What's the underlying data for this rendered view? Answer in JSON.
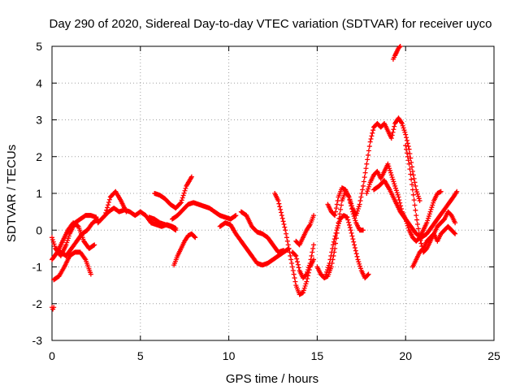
{
  "chart_data": {
    "type": "scatter",
    "title": "Day 290 of 2020, Sidereal Day-to-day VTEC variation (SDTVAR) for receiver uyco",
    "xlabel": "GPS time / hours",
    "ylabel": "SDTVAR / TECUs",
    "xlim": [
      0,
      25
    ],
    "ylim": [
      -3,
      5
    ],
    "xticks": [
      0,
      5,
      10,
      15,
      20,
      25
    ],
    "yticks": [
      -3,
      -2,
      -1,
      0,
      1,
      2,
      3,
      4,
      5
    ],
    "xtick_labels": [
      "0",
      "5",
      "10",
      "15",
      "20",
      "25"
    ],
    "ytick_labels": [
      "-3",
      "-2",
      "-1",
      "0",
      "1",
      "2",
      "3",
      "4",
      "5"
    ],
    "grid": true,
    "marker": "+",
    "series_color": "#ff0000",
    "series": [
      {
        "name": "trace-1",
        "x": [
          0.0,
          0.05,
          0.1
        ],
        "y": [
          -2.1,
          -2.15,
          -2.1
        ]
      },
      {
        "name": "trace-2",
        "x": [
          0.0,
          0.2,
          0.5,
          0.8,
          1.0,
          1.3,
          1.6,
          1.9,
          2.2,
          2.5
        ],
        "y": [
          -0.2,
          -0.5,
          -0.7,
          -0.4,
          -0.1,
          0.2,
          0.3,
          0.4,
          0.4,
          0.35
        ]
      },
      {
        "name": "trace-3",
        "x": [
          0.0,
          0.3,
          0.6,
          0.9,
          1.2,
          1.5,
          1.8,
          2.1,
          2.4
        ],
        "y": [
          -0.8,
          -0.6,
          -0.3,
          0.0,
          0.2,
          0.1,
          -0.3,
          -0.5,
          -0.4
        ]
      },
      {
        "name": "trace-4",
        "x": [
          0.1,
          0.4,
          0.7,
          1.0,
          1.3,
          1.6,
          1.9,
          2.2
        ],
        "y": [
          -1.35,
          -1.25,
          -1.0,
          -0.7,
          -0.6,
          -0.6,
          -0.8,
          -1.2
        ]
      },
      {
        "name": "trace-5",
        "x": [
          0.2,
          0.5,
          0.8,
          1.1,
          1.4,
          1.7,
          2.0,
          2.3,
          2.6
        ],
        "y": [
          -0.5,
          -0.6,
          -0.7,
          -0.5,
          -0.3,
          -0.1,
          0.0,
          0.2,
          0.3
        ]
      },
      {
        "name": "trace-6",
        "x": [
          2.6,
          2.9,
          3.2,
          3.5,
          3.8,
          4.1,
          4.4,
          4.7,
          5.0,
          5.3,
          5.6,
          5.9,
          6.2,
          6.5,
          6.8,
          7.0
        ],
        "y": [
          0.2,
          0.35,
          0.5,
          0.6,
          0.5,
          0.55,
          0.5,
          0.4,
          0.5,
          0.4,
          0.2,
          0.15,
          0.1,
          0.15,
          0.1,
          0.05
        ]
      },
      {
        "name": "trace-7",
        "x": [
          3.0,
          3.3,
          3.6,
          3.9,
          4.2
        ],
        "y": [
          0.4,
          0.9,
          1.05,
          0.8,
          0.5
        ]
      },
      {
        "name": "trace-8",
        "x": [
          5.5,
          5.8,
          6.1,
          6.4,
          6.7,
          7.0
        ],
        "y": [
          0.35,
          0.3,
          0.2,
          0.15,
          0.1,
          0.0
        ]
      },
      {
        "name": "trace-9",
        "x": [
          5.8,
          6.1,
          6.4,
          6.7,
          7.0,
          7.3,
          7.6,
          7.9
        ],
        "y": [
          1.0,
          0.95,
          0.85,
          0.7,
          0.6,
          0.75,
          1.2,
          1.45
        ]
      },
      {
        "name": "trace-10",
        "x": [
          6.9,
          7.1,
          7.3,
          7.5,
          7.7,
          7.9,
          8.1
        ],
        "y": [
          -0.95,
          -0.7,
          -0.5,
          -0.3,
          -0.15,
          -0.1,
          -0.2
        ]
      },
      {
        "name": "trace-11",
        "x": [
          6.8,
          7.1,
          7.4,
          7.7,
          8.0,
          8.3,
          8.6,
          8.9,
          9.2,
          9.5,
          9.8,
          10.1,
          10.4
        ],
        "y": [
          0.3,
          0.4,
          0.55,
          0.7,
          0.75,
          0.7,
          0.65,
          0.6,
          0.5,
          0.4,
          0.35,
          0.3,
          0.4
        ]
      },
      {
        "name": "trace-12",
        "x": [
          9.5,
          9.8,
          10.1,
          10.4,
          10.7,
          11.0,
          11.3,
          11.6,
          11.9,
          12.2,
          12.5,
          12.8,
          13.1,
          13.4
        ],
        "y": [
          0.1,
          0.2,
          0.15,
          -0.1,
          -0.3,
          -0.5,
          -0.7,
          -0.9,
          -0.95,
          -0.9,
          -0.8,
          -0.7,
          -0.6,
          -0.5
        ]
      },
      {
        "name": "trace-13",
        "x": [
          10.7,
          11.0,
          11.3,
          11.6,
          11.9,
          12.2,
          12.5,
          12.8,
          13.1
        ],
        "y": [
          0.5,
          0.4,
          0.1,
          -0.05,
          -0.1,
          -0.2,
          -0.4,
          -0.6,
          -0.55
        ]
      },
      {
        "name": "trace-14",
        "x": [
          12.6,
          12.8,
          13.0,
          13.2,
          13.4,
          13.6,
          13.8,
          14.0,
          14.2,
          14.4,
          14.6,
          14.8
        ],
        "y": [
          1.0,
          0.8,
          0.4,
          0.0,
          -0.5,
          -1.0,
          -1.5,
          -1.75,
          -1.7,
          -1.4,
          -1.0,
          -0.8
        ]
      },
      {
        "name": "trace-15",
        "x": [
          13.6,
          13.8,
          14.0,
          14.2,
          14.4,
          14.6,
          14.8
        ],
        "y": [
          -0.6,
          -0.7,
          -1.1,
          -1.3,
          -1.2,
          -0.9,
          -0.4
        ]
      },
      {
        "name": "trace-16",
        "x": [
          13.8,
          14.0,
          14.2,
          14.4,
          14.6,
          14.8
        ],
        "y": [
          -0.3,
          -0.4,
          -0.2,
          0.0,
          0.15,
          0.4
        ]
      },
      {
        "name": "trace-17",
        "x": [
          15.0,
          15.2,
          15.4,
          15.6,
          15.8,
          16.0,
          16.2,
          16.4,
          16.6,
          16.8,
          17.0,
          17.2,
          17.4,
          17.6
        ],
        "y": [
          -1.0,
          -1.2,
          -1.3,
          -1.25,
          -1.0,
          -0.5,
          0.2,
          0.8,
          1.05,
          0.9,
          0.5,
          0.2,
          0.0,
          0.0
        ]
      },
      {
        "name": "trace-18",
        "x": [
          15.5,
          15.7,
          15.9,
          16.1,
          16.3,
          16.5,
          16.7,
          16.9,
          17.1,
          17.3,
          17.5,
          17.7,
          17.9
        ],
        "y": [
          -1.2,
          -0.9,
          -0.4,
          0.0,
          0.3,
          0.4,
          0.35,
          0.0,
          -0.4,
          -0.8,
          -1.1,
          -1.3,
          -1.2
        ]
      },
      {
        "name": "trace-19",
        "x": [
          15.6,
          15.8,
          16.0,
          16.2,
          16.4,
          16.6,
          16.8,
          17.0,
          17.2,
          17.4,
          17.6,
          17.8,
          18.0,
          18.2,
          18.4,
          18.6,
          18.8,
          19.0,
          19.2,
          19.4,
          19.6,
          19.8,
          20.0,
          20.2,
          20.4,
          20.6,
          20.8
        ],
        "y": [
          0.7,
          0.5,
          0.4,
          0.9,
          1.15,
          1.1,
          0.9,
          0.6,
          0.4,
          0.7,
          1.2,
          1.8,
          2.4,
          2.8,
          2.9,
          2.8,
          2.9,
          2.7,
          2.5,
          2.9,
          3.05,
          2.9,
          2.6,
          2.2,
          1.6,
          1.1,
          0.8
        ]
      },
      {
        "name": "trace-20",
        "x": [
          17.8,
          18.0,
          18.2,
          18.4,
          18.6,
          18.8,
          19.0,
          19.2,
          19.4,
          19.6,
          19.8,
          20.0,
          20.2,
          20.4,
          20.6,
          20.8,
          21.0,
          21.2,
          21.4,
          21.6,
          21.8,
          22.0
        ],
        "y": [
          1.0,
          1.3,
          1.5,
          1.6,
          1.4,
          1.6,
          1.8,
          1.5,
          1.2,
          0.9,
          0.5,
          0.3,
          0.0,
          -0.2,
          -0.3,
          -0.2,
          0.0,
          0.2,
          0.5,
          0.8,
          1.0,
          1.05
        ]
      },
      {
        "name": "trace-21",
        "x": [
          18.2,
          18.5,
          18.8,
          19.1,
          19.4,
          19.7,
          20.0,
          20.3,
          20.6,
          20.9,
          21.2,
          21.5,
          21.8,
          22.1,
          22.4,
          22.7,
          22.9
        ],
        "y": [
          1.1,
          1.2,
          1.35,
          1.1,
          0.8,
          0.5,
          0.3,
          0.1,
          -0.1,
          -0.2,
          -0.1,
          0.1,
          0.3,
          0.5,
          0.7,
          0.9,
          1.05
        ]
      },
      {
        "name": "trace-22",
        "x": [
          20.0,
          20.2,
          20.4,
          20.6,
          20.8,
          21.0,
          21.2,
          21.4,
          21.6,
          21.8,
          22.0,
          22.2,
          22.4,
          22.6,
          22.8
        ],
        "y": [
          2.3,
          1.8,
          1.1,
          0.4,
          -0.2,
          -0.6,
          -0.5,
          -0.3,
          -0.1,
          0.1,
          0.2,
          0.3,
          0.5,
          0.4,
          0.2
        ]
      },
      {
        "name": "trace-23",
        "x": [
          20.4,
          20.6,
          20.8,
          21.0,
          21.2,
          21.4,
          21.6,
          21.8,
          22.0,
          22.2,
          22.4,
          22.6,
          22.8
        ],
        "y": [
          -1.0,
          -0.8,
          -0.6,
          -0.5,
          -0.3,
          -0.2,
          -0.1,
          -0.3,
          -0.1,
          0.0,
          0.1,
          0.0,
          -0.1
        ]
      },
      {
        "name": "trace-24",
        "x": [
          19.3,
          19.4,
          19.5,
          19.6,
          19.7
        ],
        "y": [
          4.65,
          4.75,
          4.85,
          4.95,
          5.0
        ]
      }
    ]
  }
}
